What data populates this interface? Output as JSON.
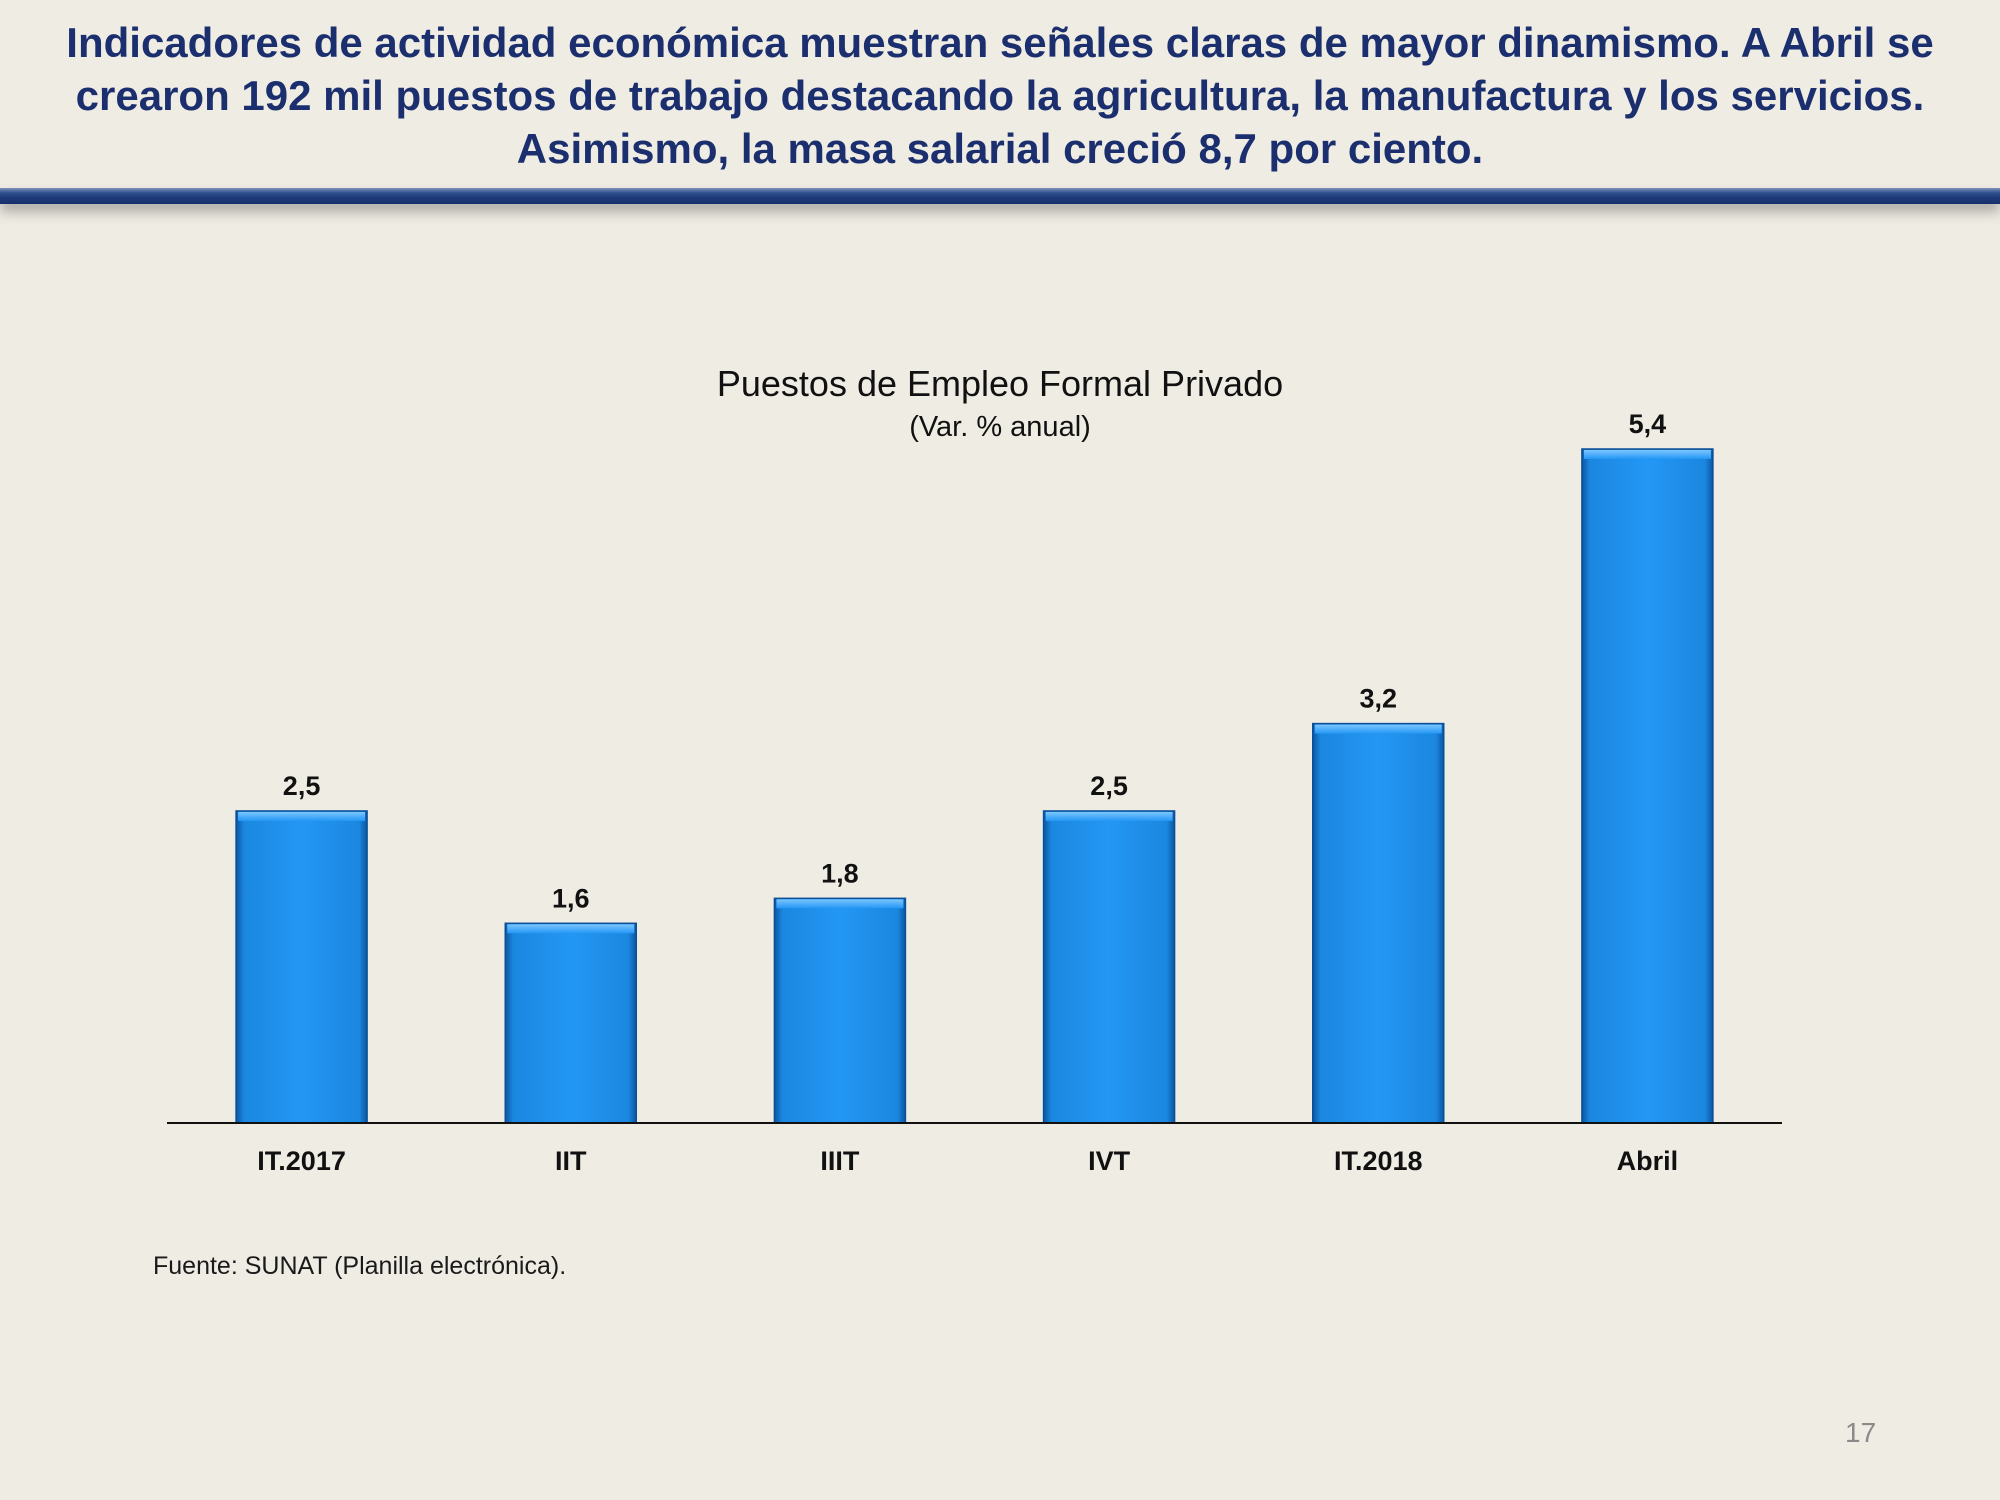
{
  "slide": {
    "headline": "Indicadores de actividad económica muestran señales claras de mayor dinamismo. A Abril se crearon 192 mil puestos de trabajo destacando la agricultura, la manufactura y los servicios. Asimismo, la masa salarial creció 8,7 por ciento.",
    "source": "Fuente: SUNAT (Planilla electrónica).",
    "page_number": "17"
  },
  "chart_data": {
    "type": "bar",
    "title": "Puestos de Empleo Formal Privado",
    "subtitle": "(Var. % anual)",
    "categories": [
      "IT.2017",
      "IIT",
      "IIIT",
      "IVT",
      "IT.2018",
      "Abril"
    ],
    "values": [
      2.5,
      1.6,
      1.8,
      2.5,
      3.2,
      5.4
    ],
    "data_labels": [
      "2,5",
      "1,6",
      "1,8",
      "2,5",
      "3,2",
      "5,4"
    ],
    "xlabel": "",
    "ylabel": "",
    "ylim": [
      0,
      5.4
    ],
    "grid": false,
    "legend": "none",
    "bar_color": "#2196f3"
  }
}
